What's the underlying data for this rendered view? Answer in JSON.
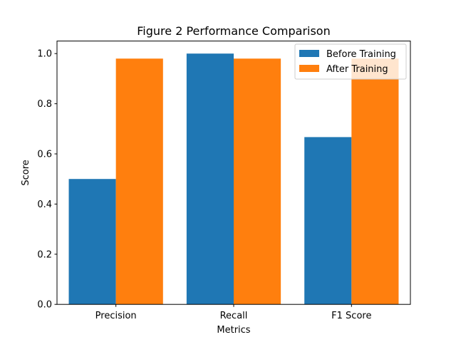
{
  "chart_data": {
    "type": "bar",
    "title": "Figure 2 Performance Comparison",
    "xlabel": "Metrics",
    "ylabel": "Score",
    "categories": [
      "Precision",
      "Recall",
      "F1 Score"
    ],
    "series": [
      {
        "name": "Before Training",
        "color": "#1f77b4",
        "values": [
          0.5,
          1.0,
          0.667
        ]
      },
      {
        "name": "After Training",
        "color": "#ff7f0e",
        "values": [
          0.98,
          0.98,
          0.98
        ]
      }
    ],
    "ylim": [
      0,
      1.05
    ],
    "yticks": [
      0.0,
      0.2,
      0.4,
      0.6,
      0.8,
      1.0
    ],
    "ytick_labels": [
      "0.0",
      "0.2",
      "0.4",
      "0.6",
      "0.8",
      "1.0"
    ],
    "grid": false,
    "legend_position": "top-right"
  }
}
